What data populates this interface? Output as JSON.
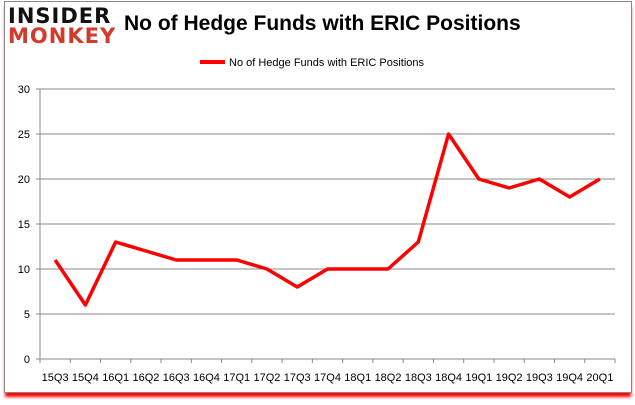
{
  "logo": {
    "line1": "INSIDER",
    "line2": "MONKEY"
  },
  "chart_data": {
    "type": "line",
    "title": "No of Hedge Funds with ERIC Positions",
    "legend_position": "top",
    "categories": [
      "15Q3",
      "15Q4",
      "16Q1",
      "16Q2",
      "16Q3",
      "16Q4",
      "17Q1",
      "17Q2",
      "17Q3",
      "17Q4",
      "18Q1",
      "18Q2",
      "18Q3",
      "18Q4",
      "19Q1",
      "19Q2",
      "19Q3",
      "19Q4",
      "20Q1"
    ],
    "series": [
      {
        "name": "No of Hedge Funds with ERIC Positions",
        "color": "#ff0000",
        "values": [
          11,
          6,
          13,
          12,
          11,
          11,
          11,
          10,
          8,
          10,
          10,
          10,
          13,
          25,
          20,
          19,
          20,
          18,
          20
        ]
      }
    ],
    "ylim": [
      0,
      30
    ],
    "yticks": [
      0,
      5,
      10,
      15,
      20,
      25,
      30
    ],
    "grid": true
  }
}
